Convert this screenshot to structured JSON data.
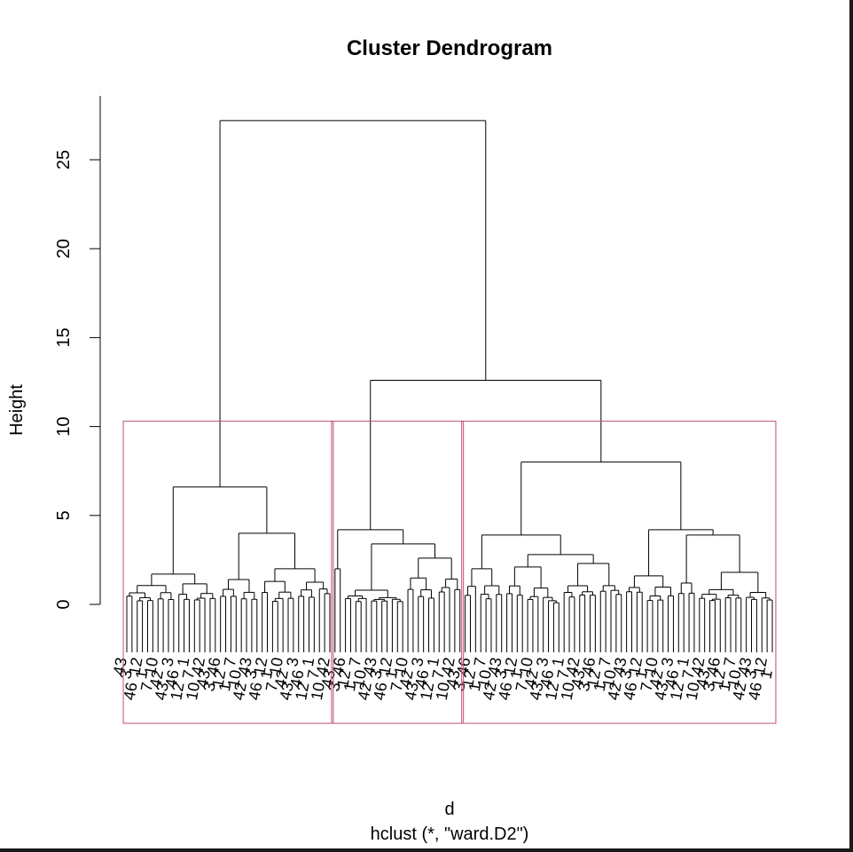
{
  "chart_data": {
    "type": "dendrogram",
    "title": "Cluster Dendrogram",
    "xlabel": "d",
    "sub": "hclust (*, \"ward.D2\")",
    "ylabel": "Height",
    "y_ticks": [
      0,
      5,
      10,
      15,
      20,
      25
    ],
    "ylim": [
      0,
      27.2
    ],
    "leaf_count": 125,
    "leaf_labels_visible": [
      "43",
      "3",
      "46",
      "12",
      "1",
      "7",
      "10",
      "42"
    ],
    "merges": [
      {
        "height": 27.2,
        "between": [
          "cluster-1",
          "clusters-2-3"
        ]
      },
      {
        "height": 12.6,
        "between": [
          "cluster-2",
          "cluster-3"
        ]
      },
      {
        "height": 6.6,
        "within": "cluster-1"
      },
      {
        "height": 8.0,
        "within": "cluster-3"
      },
      {
        "height": 4.2,
        "within": "cluster-2"
      }
    ],
    "clusters": [
      {
        "name": "cluster-1",
        "leaves": 40,
        "color": "#c0506a"
      },
      {
        "name": "cluster-2",
        "leaves": 25,
        "color": "#c0506a"
      },
      {
        "name": "cluster-3",
        "leaves": 60,
        "color": "#c0506a"
      }
    ],
    "rect_cut_height": 10.3,
    "line_color": "#000000"
  }
}
